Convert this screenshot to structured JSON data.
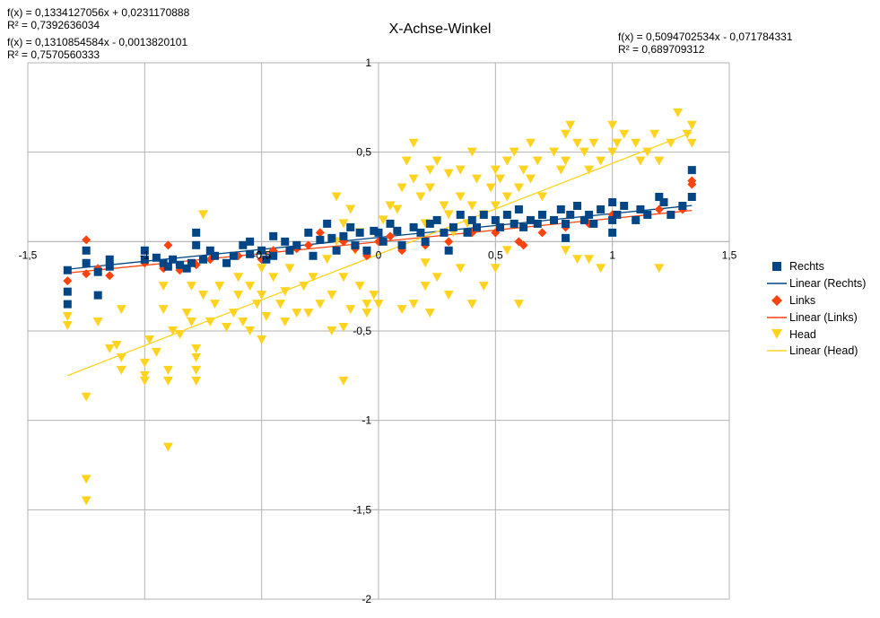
{
  "chart_data": {
    "type": "scatter",
    "title": "X-Achse-Winkel",
    "xlim": [
      -1.5,
      1.5
    ],
    "ylim": [
      -2,
      1
    ],
    "x_ticks": [
      {
        "value": -1.5,
        "label": "-1,5"
      },
      {
        "value": -1,
        "label": "-1"
      },
      {
        "value": -0.5,
        "label": "-0,5"
      },
      {
        "value": 0,
        "label": "0"
      },
      {
        "value": 0.5,
        "label": "0,5"
      },
      {
        "value": 1,
        "label": "1"
      },
      {
        "value": 1.5,
        "label": "1,5"
      }
    ],
    "y_ticks": [
      {
        "value": 1,
        "label": "1"
      },
      {
        "value": 0.5,
        "label": "0,5"
      },
      {
        "value": 0,
        "label": ""
      },
      {
        "value": -0.5,
        "label": "-0,5"
      },
      {
        "value": -1,
        "label": "-1"
      },
      {
        "value": -1.5,
        "label": "-1,5"
      },
      {
        "value": -2,
        "label": "-2"
      }
    ],
    "grid": true,
    "legend_position": "right",
    "series": [
      {
        "name": "Rechts",
        "marker": "square",
        "color": "#004586",
        "trend": {
          "label": "Linear (Rechts)",
          "slope": 0.1334127056,
          "intercept": 0.0231170888,
          "x_range": [
            -1.33,
            1.34
          ]
        },
        "equation": "f(x) = 0,1334127056x + 0,0231170888",
        "r2": "R² = 0,7392636034",
        "points": [
          [
            -1.33,
            -0.16
          ],
          [
            -1.33,
            -0.28
          ],
          [
            -1.33,
            -0.35
          ],
          [
            -1.25,
            -0.05
          ],
          [
            -1.25,
            -0.12
          ],
          [
            -1.2,
            -0.17
          ],
          [
            -1.2,
            -0.3
          ],
          [
            -1.15,
            -0.1
          ],
          [
            -1.15,
            -0.14
          ],
          [
            -1.0,
            -0.05
          ],
          [
            -1.0,
            -0.1
          ],
          [
            -0.95,
            -0.09
          ],
          [
            -0.92,
            -0.12
          ],
          [
            -0.9,
            -0.14
          ],
          [
            -0.88,
            -0.1
          ],
          [
            -0.85,
            -0.13
          ],
          [
            -0.82,
            -0.15
          ],
          [
            -0.8,
            -0.12
          ],
          [
            -0.78,
            0.05
          ],
          [
            -0.78,
            -0.02
          ],
          [
            -0.75,
            -0.1
          ],
          [
            -0.72,
            -0.05
          ],
          [
            -0.7,
            -0.08
          ],
          [
            -0.65,
            -0.12
          ],
          [
            -0.62,
            -0.08
          ],
          [
            -0.58,
            -0.02
          ],
          [
            -0.55,
            0.0
          ],
          [
            -0.55,
            -0.07
          ],
          [
            -0.5,
            -0.05
          ],
          [
            -0.48,
            -0.1
          ],
          [
            -0.45,
            0.03
          ],
          [
            -0.45,
            -0.08
          ],
          [
            -0.4,
            0.0
          ],
          [
            -0.38,
            -0.05
          ],
          [
            -0.35,
            -0.02
          ],
          [
            -0.3,
            0.05
          ],
          [
            -0.28,
            -0.08
          ],
          [
            -0.25,
            0.01
          ],
          [
            -0.22,
            0.1
          ],
          [
            -0.2,
            0.02
          ],
          [
            -0.18,
            -0.05
          ],
          [
            -0.15,
            0.03
          ],
          [
            -0.12,
            0.08
          ],
          [
            -0.1,
            -0.02
          ],
          [
            -0.08,
            0.05
          ],
          [
            -0.05,
            -0.05
          ],
          [
            -0.02,
            0.06
          ],
          [
            0.0,
            0.05
          ],
          [
            0.02,
            0.0
          ],
          [
            0.05,
            0.1
          ],
          [
            0.08,
            0.06
          ],
          [
            0.1,
            -0.02
          ],
          [
            0.15,
            0.08
          ],
          [
            0.18,
            0.05
          ],
          [
            0.2,
            0.0
          ],
          [
            0.22,
            0.1
          ],
          [
            0.25,
            0.12
          ],
          [
            0.28,
            0.05
          ],
          [
            0.3,
            -0.05
          ],
          [
            0.32,
            0.08
          ],
          [
            0.35,
            0.15
          ],
          [
            0.38,
            0.05
          ],
          [
            0.4,
            0.12
          ],
          [
            0.42,
            0.08
          ],
          [
            0.45,
            0.15
          ],
          [
            0.5,
            0.12
          ],
          [
            0.52,
            0.08
          ],
          [
            0.55,
            0.15
          ],
          [
            0.58,
            0.1
          ],
          [
            0.6,
            0.18
          ],
          [
            0.62,
            0.08
          ],
          [
            0.65,
            0.12
          ],
          [
            0.68,
            0.1
          ],
          [
            0.7,
            0.15
          ],
          [
            0.75,
            0.12
          ],
          [
            0.78,
            0.18
          ],
          [
            0.8,
            0.1
          ],
          [
            0.8,
            0.02
          ],
          [
            0.82,
            0.15
          ],
          [
            0.85,
            0.2
          ],
          [
            0.88,
            0.12
          ],
          [
            0.9,
            0.15
          ],
          [
            0.92,
            0.1
          ],
          [
            0.95,
            0.18
          ],
          [
            1.0,
            0.22
          ],
          [
            1.0,
            0.12
          ],
          [
            1.0,
            0.05
          ],
          [
            1.02,
            0.15
          ],
          [
            1.05,
            0.2
          ],
          [
            1.1,
            0.12
          ],
          [
            1.12,
            0.18
          ],
          [
            1.15,
            0.15
          ],
          [
            1.2,
            0.25
          ],
          [
            1.22,
            0.22
          ],
          [
            1.25,
            0.15
          ],
          [
            1.3,
            0.2
          ],
          [
            1.34,
            0.25
          ],
          [
            1.34,
            0.4
          ]
        ]
      },
      {
        "name": "Links",
        "marker": "diamond",
        "color": "#ff420e",
        "trend": {
          "label": "Linear (Links)",
          "slope": 0.1310854584,
          "intercept": -0.0013820101,
          "x_range": [
            -1.33,
            1.34
          ]
        },
        "equation": "f(x) = 0,1310854584x - 0,0013820101",
        "r2": "R² = 0,7570560333",
        "points": [
          [
            -1.33,
            -0.22
          ],
          [
            -1.25,
            0.01
          ],
          [
            -1.25,
            -0.18
          ],
          [
            -1.2,
            -0.15
          ],
          [
            -1.15,
            -0.19
          ],
          [
            -1.0,
            -0.12
          ],
          [
            -0.92,
            -0.15
          ],
          [
            -0.9,
            -0.02
          ],
          [
            -0.85,
            -0.16
          ],
          [
            -0.78,
            -0.13
          ],
          [
            -0.72,
            -0.1
          ],
          [
            -0.6,
            -0.08
          ],
          [
            -0.5,
            -0.1
          ],
          [
            -0.45,
            -0.05
          ],
          [
            -0.35,
            -0.04
          ],
          [
            -0.3,
            -0.02
          ],
          [
            -0.25,
            0.05
          ],
          [
            -0.15,
            0.0
          ],
          [
            -0.1,
            -0.04
          ],
          [
            -0.05,
            -0.08
          ],
          [
            0.0,
            0.0
          ],
          [
            0.05,
            0.03
          ],
          [
            0.1,
            -0.05
          ],
          [
            0.2,
            -0.02
          ],
          [
            0.3,
            0.0
          ],
          [
            0.4,
            0.05
          ],
          [
            0.5,
            0.05
          ],
          [
            0.6,
            0.0
          ],
          [
            0.62,
            -0.02
          ],
          [
            0.7,
            0.05
          ],
          [
            0.8,
            0.08
          ],
          [
            0.9,
            0.1
          ],
          [
            1.0,
            0.15
          ],
          [
            1.1,
            0.12
          ],
          [
            1.2,
            0.18
          ],
          [
            1.3,
            0.18
          ],
          [
            1.34,
            0.32
          ],
          [
            1.34,
            0.34
          ]
        ]
      },
      {
        "name": "Head",
        "marker": "triangle-down",
        "color": "#ffd320",
        "trend": {
          "label": "Linear (Head)",
          "slope": 0.5094702534,
          "intercept": -0.071784331,
          "x_range": [
            -1.33,
            1.34
          ]
        },
        "equation": "f(x) = 0,5094702534x - 0,071784331",
        "r2": "R² = 0,689709312",
        "points": [
          [
            -1.33,
            -0.42
          ],
          [
            -1.33,
            -0.47
          ],
          [
            -1.25,
            -0.87
          ],
          [
            -1.25,
            -1.33
          ],
          [
            -1.25,
            -1.45
          ],
          [
            -1.2,
            -0.45
          ],
          [
            -1.15,
            -0.6
          ],
          [
            -1.12,
            -0.58
          ],
          [
            -1.1,
            -0.65
          ],
          [
            -1.1,
            -0.72
          ],
          [
            -1.1,
            -0.38
          ],
          [
            -1.0,
            -0.68
          ],
          [
            -1.0,
            -0.75
          ],
          [
            -1.0,
            -0.78
          ],
          [
            -0.98,
            -0.55
          ],
          [
            -0.95,
            -0.62
          ],
          [
            -0.92,
            -0.38
          ],
          [
            -0.92,
            -0.25
          ],
          [
            -0.9,
            -0.72
          ],
          [
            -0.9,
            -0.78
          ],
          [
            -0.9,
            -1.15
          ],
          [
            -0.88,
            -0.5
          ],
          [
            -0.85,
            -0.15
          ],
          [
            -0.85,
            -0.52
          ],
          [
            -0.82,
            -0.4
          ],
          [
            -0.8,
            -0.25
          ],
          [
            -0.8,
            -0.45
          ],
          [
            -0.78,
            -0.65
          ],
          [
            -0.78,
            -0.72
          ],
          [
            -0.78,
            -0.78
          ],
          [
            -0.78,
            -0.6
          ],
          [
            -0.75,
            -0.3
          ],
          [
            -0.75,
            0.15
          ],
          [
            -0.72,
            -0.45
          ],
          [
            -0.7,
            -0.35
          ],
          [
            -0.68,
            -0.25
          ],
          [
            -0.65,
            -0.48
          ],
          [
            -0.62,
            -0.4
          ],
          [
            -0.6,
            -0.3
          ],
          [
            -0.58,
            -0.45
          ],
          [
            -0.55,
            -0.5
          ],
          [
            -0.55,
            -0.25
          ],
          [
            -0.52,
            -0.35
          ],
          [
            -0.5,
            -0.3
          ],
          [
            -0.5,
            -0.55
          ],
          [
            -0.48,
            -0.42
          ],
          [
            -0.45,
            -0.2
          ],
          [
            -0.42,
            -0.35
          ],
          [
            -0.4,
            -0.28
          ],
          [
            -0.4,
            -0.45
          ],
          [
            -0.38,
            -0.15
          ],
          [
            -0.35,
            -0.4
          ],
          [
            -0.32,
            -0.25
          ],
          [
            -0.3,
            -0.4
          ],
          [
            -0.28,
            -0.2
          ],
          [
            -0.25,
            -0.35
          ],
          [
            -0.22,
            -0.1
          ],
          [
            -0.2,
            -0.3
          ],
          [
            -0.2,
            -0.5
          ],
          [
            -0.18,
            0.0
          ],
          [
            -0.18,
            0.25
          ],
          [
            -0.15,
            0.1
          ],
          [
            -0.15,
            -0.2
          ],
          [
            -0.12,
            0.18
          ],
          [
            -0.1,
            -0.05
          ],
          [
            -0.08,
            0.05
          ],
          [
            -0.15,
            -0.78
          ],
          [
            -0.15,
            -0.48
          ],
          [
            -0.12,
            -0.38
          ],
          [
            -0.08,
            -0.25
          ],
          [
            -0.05,
            -0.4
          ],
          [
            -0.05,
            -0.35
          ],
          [
            -0.02,
            -0.3
          ],
          [
            0.0,
            -0.35
          ],
          [
            0.02,
            0.12
          ],
          [
            0.05,
            0.2
          ],
          [
            0.08,
            0.18
          ],
          [
            0.1,
            0.3
          ],
          [
            0.12,
            0.45
          ],
          [
            0.15,
            0.55
          ],
          [
            0.15,
            0.35
          ],
          [
            0.18,
            0.25
          ],
          [
            0.2,
            0.1
          ],
          [
            0.2,
            -0.12
          ],
          [
            0.22,
            0.4
          ],
          [
            0.22,
            0.3
          ],
          [
            0.25,
            0.45
          ],
          [
            0.28,
            0.2
          ],
          [
            0.3,
            0.38
          ],
          [
            0.3,
            0.15
          ],
          [
            0.32,
            0.05
          ],
          [
            0.35,
            0.25
          ],
          [
            0.35,
            0.4
          ],
          [
            0.38,
            0.1
          ],
          [
            0.4,
            0.2
          ],
          [
            0.4,
            0.5
          ],
          [
            0.42,
            0.35
          ],
          [
            0.45,
            0.15
          ],
          [
            0.48,
            0.3
          ],
          [
            0.5,
            0.4
          ],
          [
            0.5,
            0.2
          ],
          [
            0.52,
            0.35
          ],
          [
            0.55,
            0.45
          ],
          [
            0.55,
            0.25
          ],
          [
            0.58,
            0.5
          ],
          [
            0.6,
            0.3
          ],
          [
            0.62,
            0.4
          ],
          [
            0.65,
            0.55
          ],
          [
            0.65,
            0.35
          ],
          [
            0.68,
            0.45
          ],
          [
            0.7,
            0.25
          ],
          [
            0.75,
            0.5
          ],
          [
            0.78,
            0.4
          ],
          [
            0.8,
            0.6
          ],
          [
            0.8,
            0.45
          ],
          [
            0.82,
            0.65
          ],
          [
            0.85,
            0.55
          ],
          [
            0.88,
            0.5
          ],
          [
            0.9,
            0.4
          ],
          [
            0.92,
            0.55
          ],
          [
            0.95,
            0.45
          ],
          [
            1.0,
            0.65
          ],
          [
            1.0,
            0.5
          ],
          [
            1.02,
            0.55
          ],
          [
            1.05,
            0.6
          ],
          [
            1.1,
            0.55
          ],
          [
            1.12,
            0.45
          ],
          [
            1.15,
            0.5
          ],
          [
            1.18,
            0.6
          ],
          [
            1.2,
            0.45
          ],
          [
            1.25,
            0.55
          ],
          [
            1.28,
            0.72
          ],
          [
            1.32,
            0.6
          ],
          [
            1.34,
            0.65
          ],
          [
            1.34,
            0.55
          ],
          [
            0.1,
            -0.38
          ],
          [
            0.15,
            -0.35
          ],
          [
            0.2,
            -0.25
          ],
          [
            0.22,
            -0.4
          ],
          [
            0.25,
            -0.2
          ],
          [
            0.3,
            -0.3
          ],
          [
            0.35,
            -0.15
          ],
          [
            0.4,
            -0.35
          ],
          [
            0.45,
            -0.25
          ],
          [
            0.5,
            -0.15
          ],
          [
            0.55,
            -0.05
          ],
          [
            0.6,
            -0.35
          ],
          [
            0.8,
            -0.05
          ],
          [
            0.85,
            -0.1
          ],
          [
            0.9,
            -0.1
          ],
          [
            0.95,
            -0.15
          ],
          [
            1.2,
            -0.15
          ],
          [
            -0.5,
            -0.15
          ],
          [
            -0.6,
            -0.2
          ]
        ]
      }
    ]
  }
}
